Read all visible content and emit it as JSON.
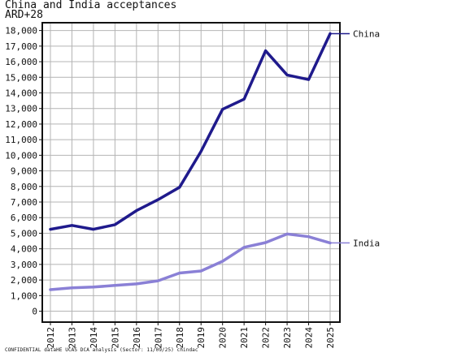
{
  "chart_data": {
    "type": "line",
    "title": "China and India acceptances",
    "subtitle": "ARD+28",
    "x": [
      "2012",
      "2013",
      "2014",
      "2015",
      "2016",
      "2017",
      "2018",
      "2019",
      "2020",
      "2021",
      "2022",
      "2023",
      "2024",
      "2025"
    ],
    "y_ticks": [
      0,
      1000,
      2000,
      3000,
      4000,
      5000,
      6000,
      7000,
      8000,
      9000,
      10000,
      11000,
      12000,
      13000,
      14000,
      15000,
      16000,
      17000,
      18000
    ],
    "y_tick_labels": [
      "0",
      "1,000",
      "2,000",
      "3,000",
      "4,000",
      "5,000",
      "6,000",
      "7,000",
      "8,000",
      "9,000",
      "10,000",
      "11,000",
      "12,000",
      "13,000",
      "14,000",
      "15,000",
      "16,000",
      "17,000",
      "18,000"
    ],
    "ylim": [
      -700,
      18500
    ],
    "grid": true,
    "legend": "right, at line ends",
    "series": [
      {
        "name": "China",
        "color": "#1f1a8c",
        "values": [
          5250,
          5500,
          5250,
          5550,
          6450,
          7150,
          7950,
          10250,
          12950,
          13600,
          16700,
          15150,
          14850,
          17800
        ]
      },
      {
        "name": "India",
        "color": "#8a80d6",
        "values": [
          1380,
          1500,
          1550,
          1650,
          1750,
          1950,
          2450,
          2580,
          3200,
          4100,
          4400,
          4950,
          4780,
          4380
        ]
      }
    ]
  },
  "footer": "CONFIDENTIAL dataHE UCAS DCA analysis (Sector: 11/09/25) chindac"
}
